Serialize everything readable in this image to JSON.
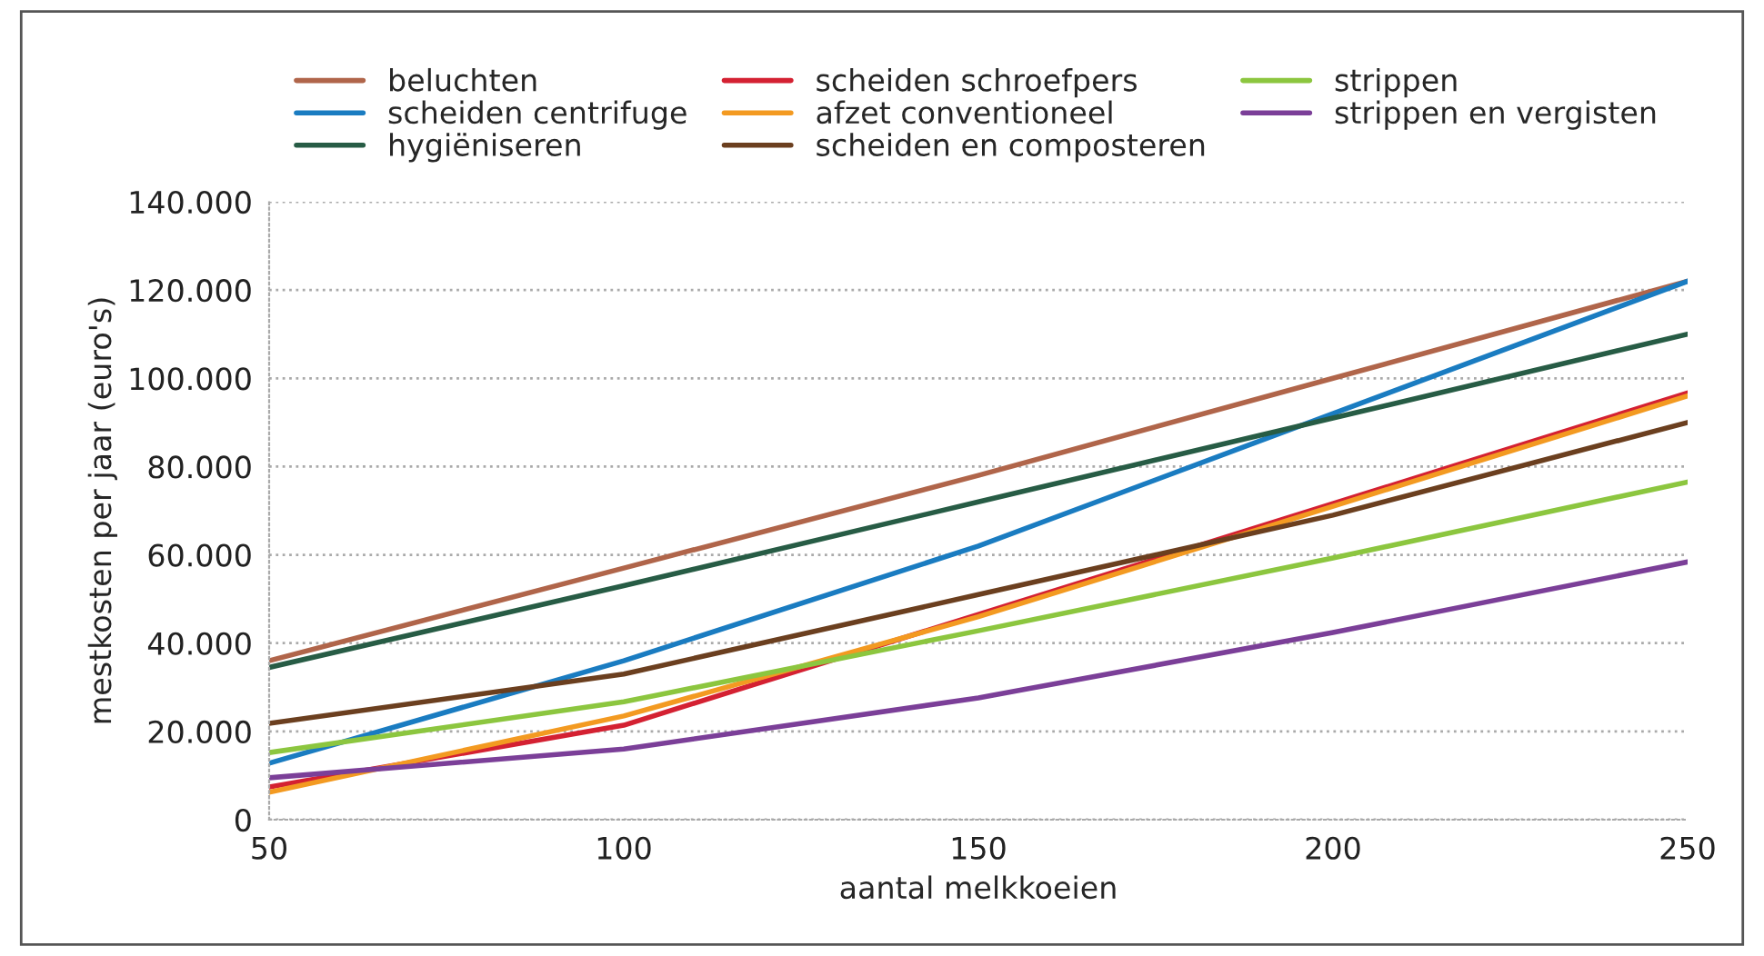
{
  "chart_data": {
    "type": "line",
    "xlabel": "aantal melkkoeien",
    "ylabel": "mestkosten per jaar (euro's)",
    "x": [
      50,
      100,
      150,
      200,
      250
    ],
    "series": [
      {
        "name": "beluchten",
        "color": "#b0654a",
        "values": [
          36000,
          57000,
          78000,
          100000,
          122000
        ]
      },
      {
        "name": "scheiden centrifuge",
        "color": "#1a7cc1",
        "values": [
          12800,
          36000,
          62000,
          92000,
          122000
        ]
      },
      {
        "name": "hygiëniseren",
        "color": "#275c45",
        "values": [
          34500,
          53000,
          72000,
          91000,
          110000
        ]
      },
      {
        "name": "scheiden schroefpers",
        "color": "#d42132",
        "values": [
          7400,
          21400,
          46500,
          71600,
          96700
        ]
      },
      {
        "name": "afzet conventioneel",
        "color": "#f39a21",
        "values": [
          6200,
          23500,
          46000,
          71000,
          96000
        ]
      },
      {
        "name": "scheiden en composteren",
        "color": "#6b3f1f",
        "values": [
          21800,
          33000,
          51000,
          69000,
          90000
        ]
      },
      {
        "name": "strippen",
        "color": "#8cc63f",
        "values": [
          15200,
          26700,
          42800,
          59300,
          76500
        ]
      },
      {
        "name": "strippen en vergisten",
        "color": "#7b3f98",
        "values": [
          9500,
          16000,
          27600,
          42400,
          58400
        ]
      }
    ],
    "xlim": [
      50,
      250
    ],
    "xticks": [
      50,
      100,
      150,
      200,
      250
    ],
    "ylim": [
      0,
      140000
    ],
    "yticks": [
      {
        "value": 0,
        "label": "0"
      },
      {
        "value": 20000,
        "label": "20.000"
      },
      {
        "value": 40000,
        "label": "40.000"
      },
      {
        "value": 60000,
        "label": "60.000"
      },
      {
        "value": 80000,
        "label": "80.000"
      },
      {
        "value": 100000,
        "label": "100.000"
      },
      {
        "value": 120000,
        "label": "120.000"
      },
      {
        "value": 140000,
        "label": "140.000"
      }
    ],
    "grid": "y",
    "legend": "top",
    "line_style": "solid",
    "marker": "none"
  }
}
